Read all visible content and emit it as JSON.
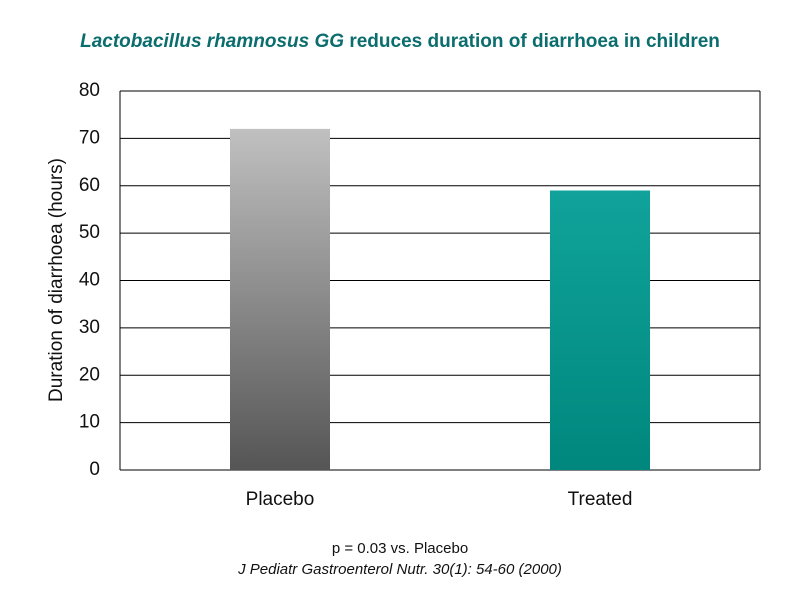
{
  "chart_data": {
    "type": "bar",
    "title": [
      "Lactobacillus rhamnosus GG",
      " reduces duration of diarrhoea in children"
    ],
    "y_label": "Duration of diarrhoea (hours)",
    "categories": [
      "Placebo",
      "Treated"
    ],
    "values": [
      72,
      59
    ],
    "colors": [
      [
        "#c0c0c0",
        "#555555"
      ],
      [
        "#10a39b",
        "#00877d"
      ]
    ],
    "ylim": [
      0,
      80
    ],
    "yticks": [
      0,
      10,
      20,
      30,
      40,
      50,
      60,
      70,
      80
    ],
    "grid": true,
    "annotations": [
      "p = 0.03 vs. Placebo",
      "J Pediatr Gastroenterol Nutr. 30(1): 54-60 (2000)"
    ]
  }
}
